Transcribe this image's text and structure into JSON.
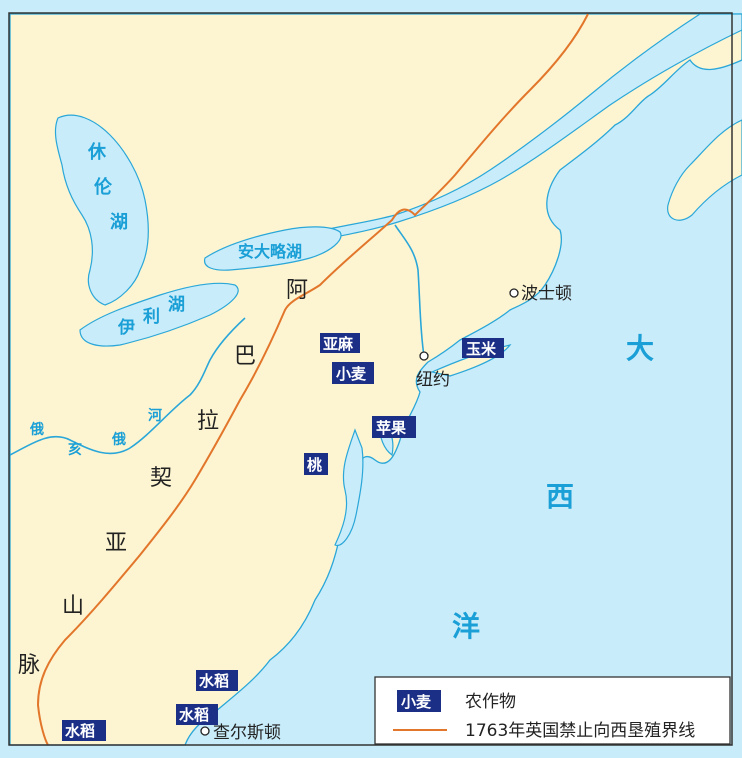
{
  "colors": {
    "land": "#fdf5d2",
    "water": "#c9ecfa",
    "coast": "#2aa7d8",
    "boundary": "#e2762b",
    "crop_badge": "#1c2f86",
    "frame": "#333333"
  },
  "lakes": {
    "huron": [
      "休",
      "伦",
      "湖"
    ],
    "ontario": "安大略湖",
    "erie": [
      "伊",
      "利",
      "湖"
    ]
  },
  "river": {
    "ohio": [
      "俄",
      "亥",
      "俄",
      "河"
    ]
  },
  "mountains": {
    "appalachian": [
      "阿",
      "巴",
      "拉",
      "契",
      "亚",
      "山",
      "脉"
    ]
  },
  "ocean": {
    "atlantic": [
      "大",
      "西",
      "洋"
    ]
  },
  "cities": {
    "boston": "波士顿",
    "new_york": "纽约",
    "charleston": "查尔斯顿"
  },
  "crops": {
    "flax": "亚麻",
    "wheat": "小麦",
    "corn": "玉米",
    "apple": "苹果",
    "peach": "桃",
    "rice_1": "水稻",
    "rice_2": "水稻",
    "rice_3": "水稻"
  },
  "legend": {
    "crop_badge": "小麦",
    "crop_text": "农作物",
    "line_text": "1763年英国禁止向西垦殖界线"
  }
}
